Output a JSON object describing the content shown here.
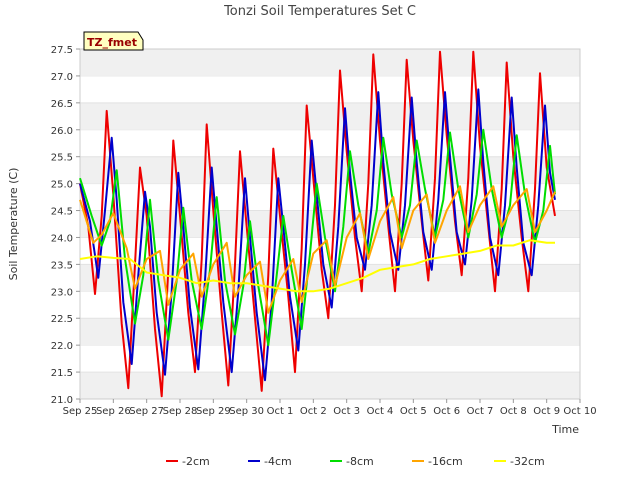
{
  "chart_data": {
    "type": "line",
    "title": "Tonzi Soil Temperatures Set C",
    "xlabel": "Time",
    "ylabel": "Soil Temperature (C)",
    "ylim": [
      21.0,
      27.5
    ],
    "xlim": [
      0,
      15
    ],
    "x_ticks": [
      "Sep 25",
      "Sep 26",
      "Sep 27",
      "Sep 28",
      "Sep 29",
      "Sep 30",
      "Oct 1",
      "Oct 2",
      "Oct 3",
      "Oct 4",
      "Oct 5",
      "Oct 6",
      "Oct 7",
      "Oct 8",
      "Oct 9",
      "Oct 10"
    ],
    "y_ticks": [
      "21.0",
      "21.5",
      "22.0",
      "22.5",
      "23.0",
      "23.5",
      "24.0",
      "24.5",
      "25.0",
      "25.5",
      "26.0",
      "26.5",
      "27.0",
      "27.5"
    ],
    "grid": "horizontal bands",
    "legend_position": "bottom",
    "tag_label": "TZ_fmet",
    "series": [
      {
        "name": "-2cm",
        "color": "#ee0000",
        "x": [
          0.0,
          0.25,
          0.45,
          0.65,
          0.8,
          1.0,
          1.25,
          1.45,
          1.65,
          1.8,
          2.0,
          2.25,
          2.45,
          2.65,
          2.8,
          3.0,
          3.25,
          3.45,
          3.65,
          3.8,
          4.0,
          4.25,
          4.45,
          4.65,
          4.8,
          5.0,
          5.25,
          5.45,
          5.65,
          5.8,
          6.0,
          6.25,
          6.45,
          6.65,
          6.8,
          7.0,
          7.25,
          7.45,
          7.65,
          7.8,
          8.0,
          8.25,
          8.45,
          8.65,
          8.8,
          9.0,
          9.25,
          9.45,
          9.65,
          9.8,
          10.0,
          10.25,
          10.45,
          10.65,
          10.8,
          11.0,
          11.25,
          11.45,
          11.65,
          11.8,
          12.0,
          12.25,
          12.45,
          12.65,
          12.8,
          13.0,
          13.25,
          13.45,
          13.65,
          13.8,
          14.0,
          14.25
        ],
        "y": [
          25.0,
          24.2,
          22.95,
          24.4,
          26.35,
          24.8,
          22.4,
          21.2,
          23.5,
          25.3,
          24.4,
          22.3,
          21.05,
          23.4,
          25.8,
          24.4,
          22.6,
          21.5,
          23.6,
          26.1,
          24.5,
          22.6,
          21.25,
          23.5,
          25.6,
          24.2,
          22.5,
          21.15,
          23.3,
          25.65,
          24.4,
          22.9,
          21.5,
          23.8,
          26.45,
          25.1,
          23.4,
          22.5,
          24.6,
          27.1,
          25.6,
          24.0,
          23.0,
          25.0,
          27.4,
          25.8,
          24.2,
          23.0,
          25.0,
          27.3,
          25.8,
          24.3,
          23.2,
          25.1,
          27.45,
          25.9,
          24.3,
          23.3,
          25.1,
          27.45,
          25.7,
          24.2,
          23.0,
          24.9,
          27.25,
          25.5,
          24.0,
          23.0,
          24.9,
          27.05,
          25.3,
          24.4
        ]
      },
      {
        "name": "-4cm",
        "color": "#0000cc",
        "x": [
          0.0,
          0.3,
          0.55,
          0.75,
          0.95,
          1.1,
          1.3,
          1.55,
          1.75,
          1.95,
          2.1,
          2.3,
          2.55,
          2.75,
          2.95,
          3.1,
          3.3,
          3.55,
          3.75,
          3.95,
          4.1,
          4.3,
          4.55,
          4.75,
          4.95,
          5.1,
          5.3,
          5.55,
          5.75,
          5.95,
          6.1,
          6.3,
          6.55,
          6.75,
          6.95,
          7.1,
          7.3,
          7.55,
          7.75,
          7.95,
          8.1,
          8.3,
          8.55,
          8.75,
          8.95,
          9.1,
          9.3,
          9.55,
          9.75,
          9.95,
          10.1,
          10.3,
          10.55,
          10.75,
          10.95,
          11.1,
          11.3,
          11.55,
          11.75,
          11.95,
          12.1,
          12.3,
          12.55,
          12.75,
          12.95,
          13.1,
          13.3,
          13.55,
          13.75,
          13.95,
          14.1,
          14.25
        ],
        "y": [
          25.0,
          24.3,
          23.25,
          24.5,
          25.85,
          24.7,
          22.8,
          21.65,
          23.3,
          24.85,
          24.2,
          22.6,
          21.45,
          23.0,
          25.2,
          24.2,
          22.7,
          21.55,
          23.2,
          25.3,
          24.2,
          22.8,
          21.5,
          23.0,
          25.1,
          24.0,
          22.6,
          21.35,
          22.8,
          25.1,
          24.2,
          22.9,
          21.9,
          23.5,
          25.8,
          24.8,
          23.5,
          22.7,
          24.2,
          26.4,
          25.2,
          24.0,
          23.4,
          24.6,
          26.7,
          25.4,
          24.1,
          23.4,
          24.6,
          26.6,
          25.4,
          24.1,
          23.4,
          24.7,
          26.7,
          25.5,
          24.1,
          23.5,
          24.7,
          26.75,
          25.4,
          24.0,
          23.3,
          24.6,
          26.6,
          25.3,
          23.9,
          23.3,
          24.6,
          26.45,
          25.2,
          24.7
        ]
      },
      {
        "name": "-8cm",
        "color": "#00dd00",
        "x": [
          0.0,
          0.35,
          0.65,
          0.9,
          1.1,
          1.35,
          1.65,
          1.9,
          2.1,
          2.35,
          2.65,
          2.9,
          3.1,
          3.35,
          3.65,
          3.9,
          4.1,
          4.35,
          4.65,
          4.9,
          5.1,
          5.35,
          5.65,
          5.9,
          6.1,
          6.35,
          6.65,
          6.9,
          7.1,
          7.35,
          7.65,
          7.9,
          8.1,
          8.35,
          8.65,
          8.9,
          9.1,
          9.35,
          9.65,
          9.9,
          10.1,
          10.35,
          10.65,
          10.9,
          11.1,
          11.35,
          11.65,
          11.9,
          12.1,
          12.35,
          12.65,
          12.9,
          13.1,
          13.35,
          13.65,
          13.9,
          14.1,
          14.25
        ],
        "y": [
          25.1,
          24.4,
          23.85,
          24.3,
          25.25,
          23.6,
          22.4,
          23.3,
          24.7,
          23.2,
          22.1,
          23.2,
          24.55,
          23.2,
          22.3,
          23.4,
          24.75,
          23.2,
          22.2,
          23.1,
          24.3,
          23.1,
          22.0,
          23.3,
          24.4,
          23.4,
          22.3,
          23.7,
          25.0,
          24.0,
          23.0,
          24.2,
          25.6,
          24.6,
          23.7,
          24.5,
          25.85,
          24.8,
          24.0,
          24.6,
          25.8,
          24.9,
          24.0,
          24.7,
          25.95,
          24.9,
          24.0,
          24.8,
          26.0,
          24.9,
          24.0,
          24.6,
          25.9,
          24.8,
          23.9,
          24.5,
          25.7,
          24.8
        ]
      },
      {
        "name": "-16cm",
        "color": "#ffa500",
        "x": [
          0.0,
          0.4,
          0.65,
          1.0,
          1.4,
          1.65,
          2.0,
          2.4,
          2.65,
          3.0,
          3.4,
          3.65,
          4.0,
          4.4,
          4.65,
          5.0,
          5.4,
          5.65,
          6.0,
          6.4,
          6.65,
          7.0,
          7.4,
          7.65,
          8.0,
          8.4,
          8.65,
          9.0,
          9.4,
          9.65,
          10.0,
          10.4,
          10.65,
          11.0,
          11.4,
          11.65,
          12.0,
          12.4,
          12.65,
          13.0,
          13.4,
          13.65,
          14.0,
          14.25
        ],
        "y": [
          24.7,
          23.9,
          24.05,
          24.45,
          23.8,
          23.05,
          23.6,
          23.75,
          22.75,
          23.4,
          23.7,
          22.9,
          23.5,
          23.9,
          22.9,
          23.3,
          23.55,
          22.6,
          23.2,
          23.6,
          22.8,
          23.7,
          23.95,
          23.1,
          24.0,
          24.45,
          23.6,
          24.3,
          24.75,
          23.8,
          24.5,
          24.8,
          23.9,
          24.5,
          24.95,
          24.1,
          24.6,
          24.95,
          24.2,
          24.6,
          24.9,
          24.1,
          24.5,
          24.85
        ]
      },
      {
        "name": "-32cm",
        "color": "#ffff00",
        "x": [
          0.0,
          0.5,
          1.0,
          1.5,
          2.0,
          2.5,
          3.0,
          3.5,
          4.0,
          4.5,
          5.0,
          5.5,
          6.0,
          6.5,
          7.0,
          7.5,
          8.0,
          8.5,
          9.0,
          9.5,
          10.0,
          10.5,
          11.0,
          11.5,
          12.0,
          12.5,
          13.0,
          13.5,
          14.0,
          14.25
        ],
        "y": [
          23.6,
          23.65,
          23.62,
          23.6,
          23.35,
          23.3,
          23.25,
          23.15,
          23.2,
          23.15,
          23.15,
          23.1,
          23.05,
          23.0,
          23.0,
          23.05,
          23.15,
          23.25,
          23.4,
          23.45,
          23.5,
          23.6,
          23.65,
          23.7,
          23.75,
          23.85,
          23.85,
          23.95,
          23.9,
          23.9
        ]
      }
    ]
  }
}
